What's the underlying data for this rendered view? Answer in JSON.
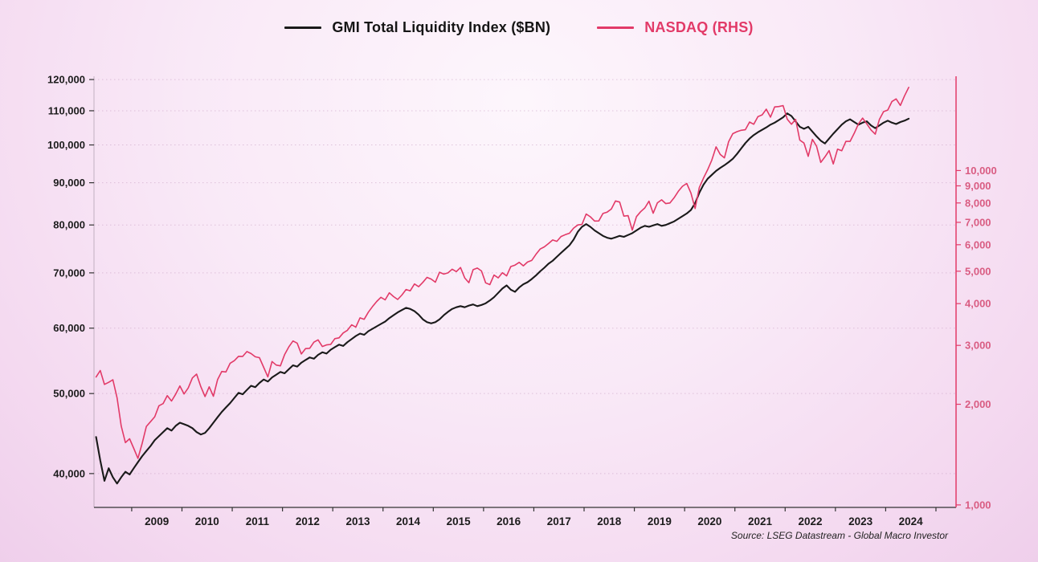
{
  "legend": [
    {
      "label": "GMI Total Liquidity Index ($BN)",
      "color": "#1a1a1a"
    },
    {
      "label": "NASDAQ (RHS)",
      "color": "#e23a68"
    }
  ],
  "source_note": "Source: LSEG Datastream - Global Macro Investor",
  "chart_data": {
    "type": "line",
    "title": "",
    "x": {
      "start_year": 2008.2917,
      "step_years": 0.0833333,
      "unit": "year"
    },
    "x_axis": {
      "min": 2008.25,
      "max": 2025.4,
      "years": [
        2009,
        2010,
        2011,
        2012,
        2013,
        2014,
        2015,
        2016,
        2017,
        2018,
        2019,
        2020,
        2021,
        2022,
        2023,
        2024
      ]
    },
    "left_axis": {
      "scale": "log",
      "min": 36400,
      "max": 121100,
      "ticks": [
        40000,
        50000,
        60000,
        70000,
        80000,
        90000,
        100000,
        110000,
        120000
      ]
    },
    "right_axis": {
      "scale": "log",
      "min": 983,
      "max": 19140,
      "ticks": [
        1000,
        2000,
        3000,
        4000,
        5000,
        6000,
        7000,
        8000,
        9000,
        10000
      ]
    },
    "grid": "dotted-horizontal",
    "legend_position": "top-center",
    "series": [
      {
        "name": "GMI Total Liquidity Index ($BN)",
        "axis": "left",
        "color": "#1a1a1a",
        "width": 2.1,
        "values": [
          44300,
          41500,
          39200,
          40600,
          39600,
          38900,
          39600,
          40200,
          39900,
          40600,
          41300,
          42000,
          42600,
          43200,
          43900,
          44400,
          44900,
          45400,
          45100,
          45700,
          46100,
          45900,
          45700,
          45400,
          44900,
          44600,
          44800,
          45400,
          46100,
          46800,
          47500,
          48100,
          48700,
          49400,
          50100,
          49900,
          50500,
          51100,
          50900,
          51500,
          52000,
          51700,
          52300,
          52700,
          53100,
          52900,
          53500,
          54100,
          53900,
          54500,
          54900,
          55300,
          55100,
          55700,
          56100,
          55900,
          56500,
          56900,
          57300,
          57100,
          57700,
          58200,
          58700,
          59100,
          58900,
          59500,
          59900,
          60300,
          60700,
          61100,
          61700,
          62200,
          62700,
          63100,
          63500,
          63300,
          62900,
          62300,
          61500,
          61000,
          60800,
          61000,
          61500,
          62200,
          62800,
          63300,
          63600,
          63800,
          63600,
          63900,
          64100,
          63800,
          64000,
          64300,
          64800,
          65400,
          66200,
          67000,
          67600,
          66800,
          66400,
          67200,
          67800,
          68200,
          68800,
          69500,
          70300,
          71000,
          71800,
          72400,
          73200,
          74000,
          74800,
          75600,
          76800,
          78500,
          79600,
          80200,
          79600,
          78800,
          78200,
          77600,
          77200,
          77000,
          77300,
          77600,
          77400,
          77800,
          78200,
          78800,
          79400,
          79800,
          79600,
          79900,
          80200,
          79800,
          80000,
          80400,
          80800,
          81400,
          82000,
          82600,
          83400,
          85000,
          87500,
          89500,
          91000,
          92000,
          93000,
          93800,
          94500,
          95300,
          96200,
          97500,
          99000,
          100500,
          101800,
          102800,
          103600,
          104300,
          105000,
          105800,
          106400,
          107200,
          108000,
          109200,
          108400,
          106800,
          105200,
          104600,
          105200,
          103800,
          102400,
          101200,
          100400,
          101800,
          103200,
          104500,
          105800,
          106800,
          107400,
          106600,
          105800,
          106400,
          106800,
          105600,
          104800,
          105600,
          106400,
          107000,
          106400,
          106000,
          106600,
          107000,
          107600
        ]
      },
      {
        "name": "NASDAQ",
        "axis": "right",
        "color": "#e23a68",
        "width": 1.6,
        "values": [
          2413,
          2523,
          2293,
          2326,
          2368,
          2092,
          1721,
          1536,
          1577,
          1476,
          1378,
          1529,
          1717,
          1774,
          1835,
          1979,
          2009,
          2122,
          2045,
          2145,
          2269,
          2147,
          2238,
          2398,
          2461,
          2257,
          2109,
          2255,
          2114,
          2369,
          2507,
          2498,
          2653,
          2700,
          2782,
          2781,
          2874,
          2835,
          2774,
          2756,
          2579,
          2415,
          2684,
          2620,
          2605,
          2814,
          2967,
          3092,
          3046,
          2827,
          2935,
          2940,
          3067,
          3116,
          2977,
          3010,
          3020,
          3142,
          3160,
          3268,
          3329,
          3456,
          3403,
          3626,
          3590,
          3771,
          3920,
          4060,
          4177,
          4104,
          4308,
          4199,
          4115,
          4243,
          4408,
          4370,
          4580,
          4493,
          4631,
          4792,
          4736,
          4635,
          4964,
          4901,
          4941,
          5070,
          4987,
          5128,
          4776,
          4620,
          5054,
          5109,
          5007,
          4614,
          4558,
          4870,
          4775,
          4948,
          4843,
          5162,
          5213,
          5312,
          5189,
          5324,
          5383,
          5614,
          5825,
          5912,
          6048,
          6199,
          6140,
          6348,
          6429,
          6496,
          6728,
          6874,
          6903,
          7411,
          7273,
          7063,
          7066,
          7442,
          7510,
          7672,
          8110,
          8046,
          7306,
          7331,
          6635,
          7282,
          7533,
          7729,
          8095,
          7453,
          8006,
          8175,
          7963,
          7999,
          8292,
          8665,
          8973,
          9151,
          8567,
          7700,
          8890,
          9490,
          10059,
          10745,
          11775,
          11168,
          10912,
          12199,
          12888,
          13071,
          13192,
          13247,
          13963,
          13749,
          14504,
          14673,
          15259,
          14449,
          15498,
          15538,
          15645,
          14240,
          13751,
          14221,
          12335,
          12081,
          11029,
          12391,
          11816,
          10576,
          10988,
          11468,
          10466,
          11585,
          11456,
          12222,
          12227,
          12935,
          13788,
          14346,
          13791,
          13219,
          12851,
          14226,
          15011,
          15164,
          16092,
          16379,
          15658,
          16735,
          17733
        ]
      }
    ]
  }
}
